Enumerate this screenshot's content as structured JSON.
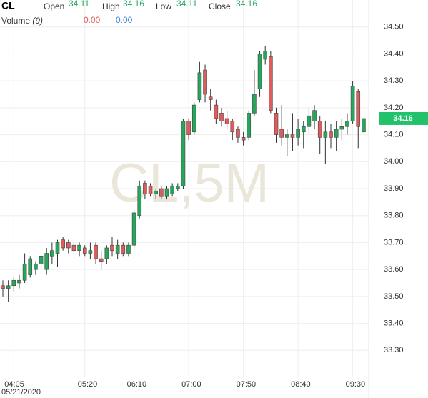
{
  "chart_data": {
    "type": "candlestick",
    "title": "CL",
    "watermark": "CL,5M",
    "date": "05/21/2020",
    "header_labels": [
      "Open",
      "High",
      "Low",
      "Close"
    ],
    "volume": {
      "label": "Volume",
      "period": "(9)",
      "values": [
        {
          "value": 0,
          "label": "0.00"
        },
        {
          "value": 0,
          "label": "0.00"
        }
      ],
      "colors": [
        "#e05c5c",
        "#3b82d6"
      ]
    },
    "categories": [
      null,
      null,
      "04:05",
      null,
      null,
      null,
      null,
      null,
      null,
      null,
      null,
      null,
      null,
      null,
      null,
      "05:20",
      null,
      null,
      null,
      null,
      null,
      null,
      null,
      null,
      "06:10",
      null,
      null,
      null,
      null,
      null,
      null,
      null,
      null,
      null,
      "07:00",
      null,
      null,
      null,
      null,
      null,
      null,
      null,
      null,
      null,
      "07:50",
      null,
      null,
      null,
      null,
      null,
      null,
      null,
      null,
      null,
      "08:40",
      null,
      null,
      null,
      null,
      null,
      null,
      null,
      null,
      null,
      "09:30",
      null,
      null
    ],
    "open": [
      33.54,
      33.53,
      33.54,
      33.55,
      33.56,
      33.58,
      33.6,
      33.62,
      33.6,
      33.65,
      33.66,
      33.71,
      33.7,
      33.69,
      33.67,
      33.68,
      33.66,
      33.69,
      33.64,
      33.64,
      33.69,
      33.66,
      33.69,
      33.66,
      33.69,
      33.8,
      33.92,
      33.91,
      33.88,
      33.9,
      33.87,
      33.88,
      33.9,
      33.91,
      34.15,
      34.11,
      34.23,
      34.34,
      34.24,
      34.21,
      34.18,
      34.16,
      34.15,
      34.12,
      34.09,
      34.09,
      34.18,
      34.27,
      34.38,
      34.39,
      34.18,
      34.12,
      34.09,
      34.1,
      34.09,
      34.11,
      34.13,
      34.15,
      34.15,
      34.09,
      34.11,
      34.09,
      34.12,
      34.13,
      34.15,
      34.26,
      34.11
    ],
    "high": [
      33.56,
      33.56,
      33.57,
      33.58,
      33.66,
      33.65,
      33.63,
      33.66,
      33.68,
      33.7,
      33.71,
      33.72,
      33.71,
      33.7,
      33.7,
      33.69,
      33.7,
      33.7,
      33.67,
      33.69,
      33.72,
      33.71,
      33.7,
      33.7,
      33.82,
      33.93,
      33.93,
      33.92,
      33.9,
      33.91,
      33.91,
      33.92,
      33.92,
      34.16,
      34.16,
      34.22,
      34.37,
      34.36,
      34.27,
      34.23,
      34.2,
      34.19,
      34.16,
      34.13,
      34.11,
      34.19,
      34.34,
      34.41,
      34.43,
      34.41,
      34.2,
      34.21,
      34.12,
      34.18,
      34.16,
      34.15,
      34.2,
      34.21,
      34.17,
      34.15,
      34.14,
      34.15,
      34.16,
      34.18,
      34.3,
      34.27,
      34.16
    ],
    "low": [
      33.5,
      33.48,
      33.52,
      33.53,
      33.55,
      33.57,
      33.58,
      33.6,
      33.58,
      33.62,
      33.61,
      33.67,
      33.66,
      33.66,
      33.65,
      33.65,
      33.64,
      33.62,
      33.6,
      33.62,
      33.65,
      33.64,
      33.65,
      33.65,
      33.68,
      33.79,
      33.86,
      33.87,
      33.86,
      33.86,
      33.86,
      33.87,
      33.89,
      33.9,
      34.08,
      34.1,
      34.22,
      34.22,
      34.19,
      34.14,
      34.13,
      34.12,
      34.08,
      34.07,
      34.06,
      34.08,
      34.17,
      34.24,
      34.36,
      34.18,
      34.07,
      34.06,
      34.02,
      34.04,
      34.06,
      34.05,
      34.1,
      34.12,
      34.03,
      33.99,
      34.05,
      34.04,
      34.08,
      34.1,
      34.14,
      34.05,
      34.11
    ],
    "close": [
      33.53,
      33.54,
      33.56,
      33.56,
      33.62,
      33.64,
      33.62,
      33.65,
      33.66,
      33.67,
      33.7,
      33.68,
      33.68,
      33.67,
      33.69,
      33.66,
      33.67,
      33.64,
      33.63,
      33.68,
      33.67,
      33.69,
      33.66,
      33.69,
      33.81,
      33.91,
      33.88,
      33.88,
      33.89,
      33.87,
      33.9,
      33.91,
      33.91,
      34.15,
      34.1,
      34.21,
      34.33,
      34.25,
      34.23,
      34.16,
      34.15,
      34.14,
      34.11,
      34.09,
      34.08,
      34.18,
      34.25,
      34.4,
      34.41,
      34.19,
      34.1,
      34.09,
      34.1,
      34.09,
      34.12,
      34.13,
      34.17,
      34.19,
      34.09,
      34.11,
      34.09,
      34.12,
      34.13,
      34.15,
      34.28,
      34.13,
      34.16
    ],
    "up_color": "#26a65b",
    "down_color": "#e05c5c",
    "ylim": [
      33.2,
      34.6
    ],
    "yticks": [
      {
        "value": 33.3,
        "label": "33.30"
      },
      {
        "value": 33.4,
        "label": "33.40"
      },
      {
        "value": 33.5,
        "label": "33.50"
      },
      {
        "value": 33.6,
        "label": "33.60"
      },
      {
        "value": 33.7,
        "label": "33.70"
      },
      {
        "value": 33.8,
        "label": "33.80"
      },
      {
        "value": 33.9,
        "label": "33.90"
      },
      {
        "value": 34.0,
        "label": "34.00"
      },
      {
        "value": 34.1,
        "label": "34.10"
      },
      {
        "value": 34.2,
        "label": "34.20"
      },
      {
        "value": 34.3,
        "label": "34.30"
      },
      {
        "value": 34.4,
        "label": "34.40"
      },
      {
        "value": 34.5,
        "label": "34.50"
      }
    ],
    "grid": true
  }
}
